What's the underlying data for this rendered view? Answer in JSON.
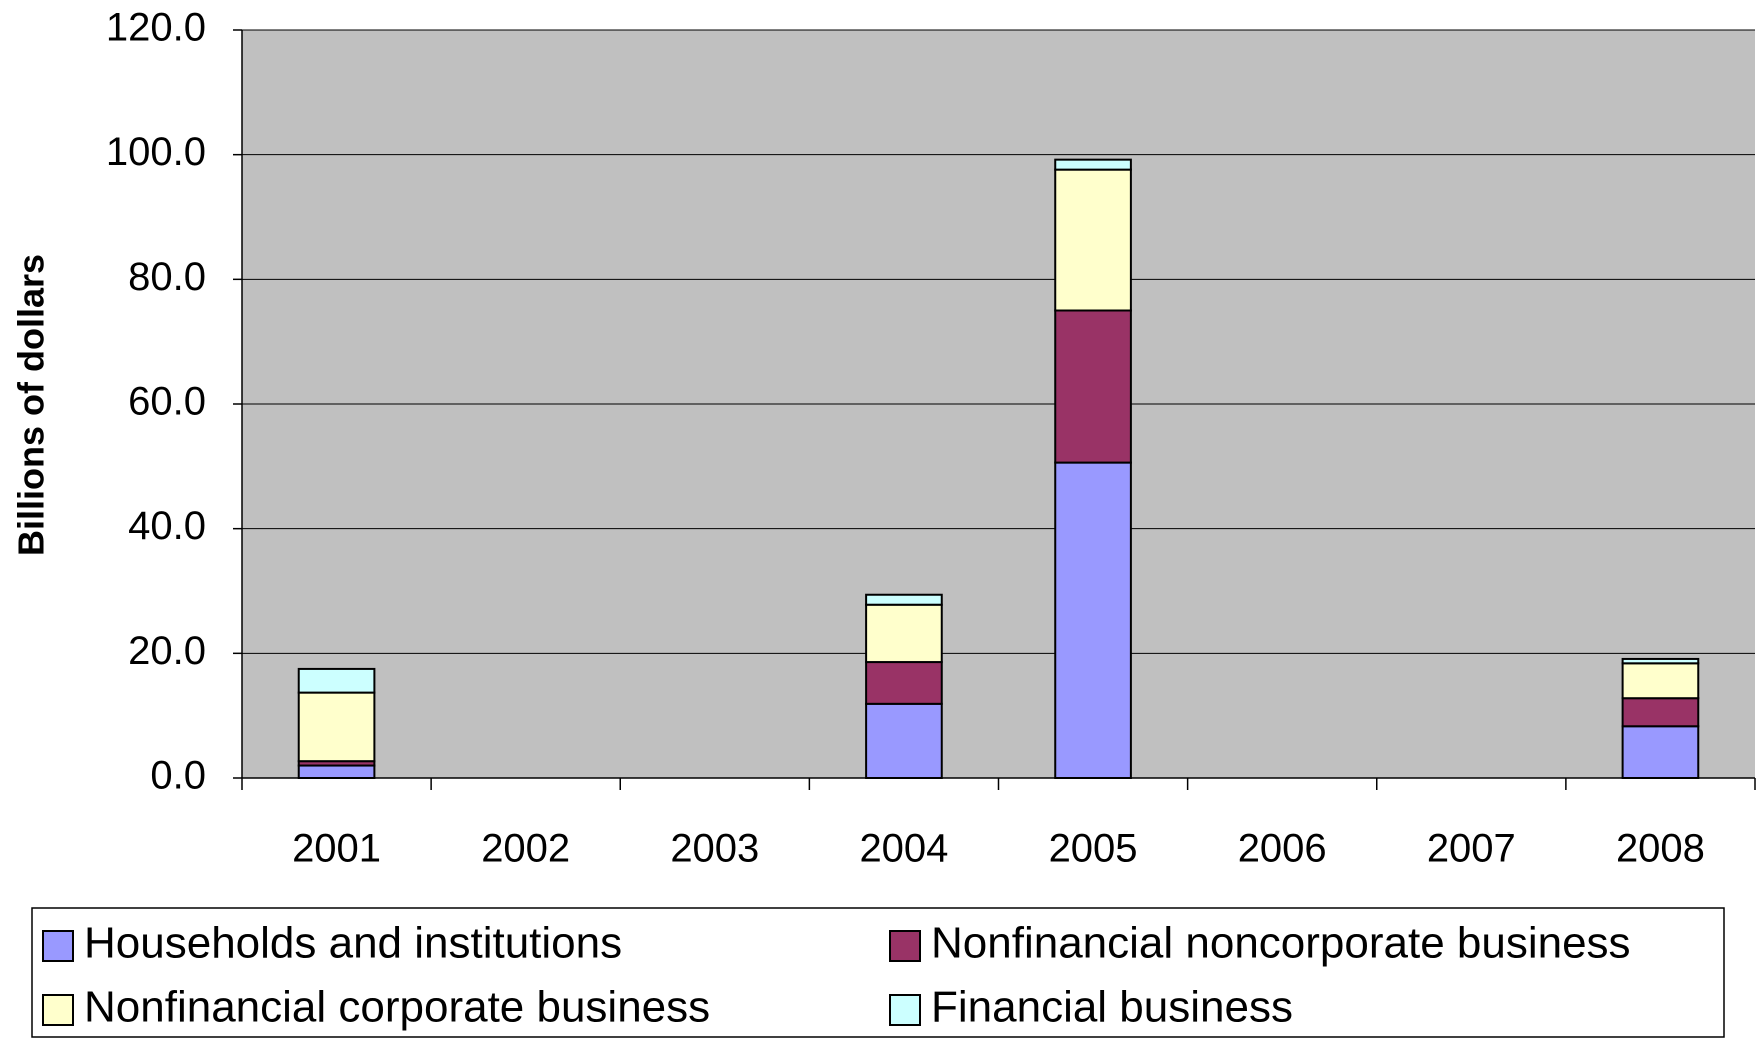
{
  "chart_data": {
    "type": "stacked-bar",
    "y_label": "Billions of dollars",
    "categories": [
      "2001",
      "2002",
      "2003",
      "2004",
      "2005",
      "2006",
      "2007",
      "2008"
    ],
    "series": [
      {
        "name": "Households and institutions",
        "color": "#9999ff",
        "values": [
          2.0,
          null,
          null,
          11.9,
          50.6,
          null,
          null,
          8.3
        ]
      },
      {
        "name": "Nonfinancial noncorporate business",
        "color": "#993366",
        "values": [
          0.7,
          null,
          null,
          6.7,
          24.4,
          null,
          null,
          4.5
        ]
      },
      {
        "name": "Nonfinancial corporate business",
        "color": "#ffffcc",
        "values": [
          11.0,
          null,
          null,
          9.2,
          22.6,
          null,
          null,
          5.6
        ]
      },
      {
        "name": "Financial business",
        "color": "#ccffff",
        "values": [
          3.8,
          null,
          null,
          1.6,
          1.6,
          null,
          null,
          0.7
        ]
      }
    ],
    "ylim": [
      0,
      120
    ],
    "yticks": [
      {
        "value": 0,
        "label": "0.0"
      },
      {
        "value": 20,
        "label": "20.0"
      },
      {
        "value": 40,
        "label": "40.0"
      },
      {
        "value": 60,
        "label": "60.0"
      },
      {
        "value": 80,
        "label": "80.0"
      },
      {
        "value": 100,
        "label": "100.0"
      },
      {
        "value": 120,
        "label": "120.0"
      }
    ],
    "grid": true,
    "legend": "bottom"
  }
}
